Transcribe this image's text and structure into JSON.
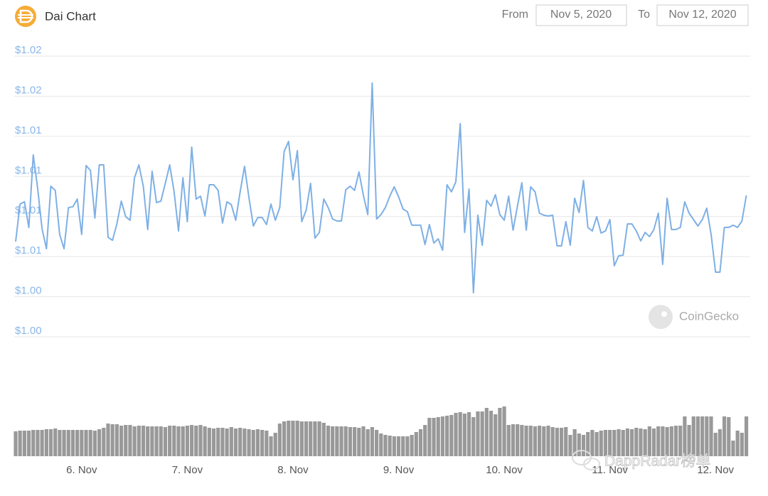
{
  "header": {
    "title": "Dai Chart",
    "from_label": "From",
    "from_date": "Nov 5, 2020",
    "to_label": "To",
    "to_date": "Nov 12, 2020"
  },
  "watermarks": [
    "CoinGecko",
    "DappRadar榜单"
  ],
  "chart_data": {
    "type": "line",
    "color": "#7eb0e5",
    "grid": true,
    "ylim": [
      1.0,
      1.0175
    ],
    "yticks": [
      {
        "value": 1.0,
        "label": "$1.00"
      },
      {
        "value": 1.0025,
        "label": "$1.00"
      },
      {
        "value": 1.005,
        "label": "$1.01"
      },
      {
        "value": 1.0075,
        "label": "$1.01"
      },
      {
        "value": 1.01,
        "label": "$1.01"
      },
      {
        "value": 1.0125,
        "label": "$1.01"
      },
      {
        "value": 1.015,
        "label": "$1.02"
      },
      {
        "value": 1.0175,
        "label": "$1.02"
      }
    ],
    "categories": [
      null,
      null,
      null,
      null,
      null,
      null,
      null,
      null,
      null,
      null,
      null,
      null,
      null,
      null,
      null,
      "6. Nov",
      null,
      null,
      null,
      null,
      null,
      null,
      null,
      null,
      null,
      null,
      null,
      null,
      null,
      null,
      null,
      null,
      null,
      null,
      null,
      null,
      null,
      null,
      null,
      "7. Nov",
      null,
      null,
      null,
      null,
      null,
      null,
      null,
      null,
      null,
      null,
      null,
      null,
      null,
      null,
      null,
      null,
      null,
      null,
      null,
      null,
      null,
      null,
      null,
      "8. Nov",
      null,
      null,
      null,
      null,
      null,
      null,
      null,
      null,
      null,
      null,
      null,
      null,
      null,
      null,
      null,
      null,
      null,
      null,
      null,
      null,
      null,
      null,
      null,
      "9. Nov",
      null,
      null,
      null,
      null,
      null,
      null,
      null,
      null,
      null,
      null,
      null,
      null,
      null,
      null,
      null,
      null,
      null,
      null,
      null,
      null,
      null,
      null,
      null,
      "10. Nov",
      null,
      null,
      null,
      null,
      null,
      null,
      null,
      null,
      null,
      null,
      null,
      null,
      null,
      null,
      null,
      null,
      null,
      null,
      null,
      null,
      null,
      null,
      null,
      "11. Nov",
      null,
      null,
      null,
      null,
      null,
      null,
      null,
      null,
      null,
      null,
      null,
      null,
      null,
      null,
      null,
      null,
      null,
      null,
      null,
      null,
      null,
      null,
      null,
      "12. Nov",
      null,
      null,
      null,
      null,
      null,
      null,
      null
    ],
    "values": [
      1.00594,
      1.00828,
      1.00842,
      1.00682,
      1.01134,
      1.00926,
      1.00673,
      1.00549,
      1.00939,
      1.00913,
      1.00638,
      1.00549,
      1.00806,
      1.00811,
      1.00859,
      1.00638,
      1.01068,
      1.01037,
      1.0074,
      1.01072,
      1.01072,
      1.0062,
      1.00602,
      1.00704,
      1.00846,
      1.00749,
      1.00727,
      1.00992,
      1.01072,
      1.00939,
      1.00669,
      1.01032,
      1.00837,
      1.00846,
      1.00957,
      1.01072,
      1.00904,
      1.0066,
      1.00992,
      1.00718,
      1.01183,
      1.00859,
      1.00877,
      1.00753,
      1.00948,
      1.00948,
      1.00913,
      1.00709,
      1.00842,
      1.00824,
      1.00727,
      1.00904,
      1.01063,
      1.00868,
      1.00691,
      1.00744,
      1.00744,
      1.007,
      1.00828,
      1.00727,
      1.00806,
      1.01156,
      1.01218,
      1.00979,
      1.01161,
      1.00718,
      1.00789,
      1.00957,
      1.00616,
      1.00651,
      1.00859,
      1.00806,
      1.00735,
      1.00722,
      1.00722,
      1.00917,
      1.00939,
      1.00913,
      1.01028,
      1.00882,
      1.00762,
      1.01582,
      1.00735,
      1.00762,
      1.00806,
      1.00877,
      1.00935,
      1.00873,
      1.00797,
      1.0078,
      1.00696,
      1.00696,
      1.00696,
      1.00576,
      1.007,
      1.00585,
      1.00611,
      1.0054,
      1.00948,
      1.00904,
      1.00966,
      1.01329,
      1.00651,
      1.00921,
      1.00275,
      1.00758,
      1.00571,
      1.00851,
      1.00815,
      1.00886,
      1.00762,
      1.00727,
      1.00877,
      1.00665,
      1.00815,
      1.00961,
      1.00665,
      1.00935,
      1.00904,
      1.00771,
      1.00758,
      1.00753,
      1.00758,
      1.00567,
      1.00567,
      1.00718,
      1.00571,
      1.00864,
      1.00775,
      1.00975,
      1.00682,
      1.0066,
      1.00749,
      1.00647,
      1.0066,
      1.00731,
      1.00443,
      1.00505,
      1.00509,
      1.00704,
      1.00704,
      1.0066,
      1.00598,
      1.00651,
      1.00625,
      1.00669,
      1.00771,
      1.00452,
      1.00864,
      1.00669,
      1.00669,
      1.00682,
      1.00842,
      1.00771,
      1.00731,
      1.00691,
      1.00731,
      1.00802,
      1.00638,
      1.00403,
      1.00403,
      1.00682,
      1.00682,
      1.00696,
      1.00682,
      1.00722,
      1.00882
    ],
    "volume": {
      "type": "bar",
      "color": "#999999",
      "values": [
        35,
        36,
        36,
        36,
        37,
        37,
        37,
        38,
        38,
        39,
        37,
        37,
        37,
        37,
        37,
        37,
        37,
        37,
        36,
        38,
        40,
        46,
        45,
        45,
        43,
        44,
        44,
        42,
        43,
        43,
        42,
        42,
        42,
        42,
        41,
        43,
        43,
        42,
        42,
        43,
        44,
        43,
        44,
        42,
        40,
        39,
        40,
        40,
        39,
        41,
        39,
        40,
        39,
        38,
        37,
        38,
        37,
        36,
        28,
        33,
        46,
        49,
        50,
        50,
        50,
        49,
        49,
        49,
        49,
        49,
        47,
        43,
        42,
        42,
        42,
        42,
        41,
        41,
        40,
        42,
        38,
        41,
        37,
        32,
        30,
        29,
        28,
        28,
        28,
        28,
        30,
        34,
        38,
        44,
        54,
        54,
        55,
        56,
        57,
        58,
        61,
        62,
        60,
        62,
        55,
        63,
        63,
        68,
        64,
        59,
        68,
        70,
        44,
        45,
        45,
        44,
        43,
        43,
        42,
        43,
        42,
        43,
        41,
        40,
        40,
        41,
        30,
        38,
        32,
        30,
        34,
        37,
        34,
        36,
        37,
        37,
        37,
        38,
        37,
        39,
        38,
        40,
        39,
        38,
        42,
        39,
        42,
        42,
        41,
        42,
        43,
        43,
        56,
        44,
        56,
        56,
        56,
        56,
        56,
        33,
        38,
        56,
        55,
        22,
        36,
        33,
        56
      ]
    }
  }
}
